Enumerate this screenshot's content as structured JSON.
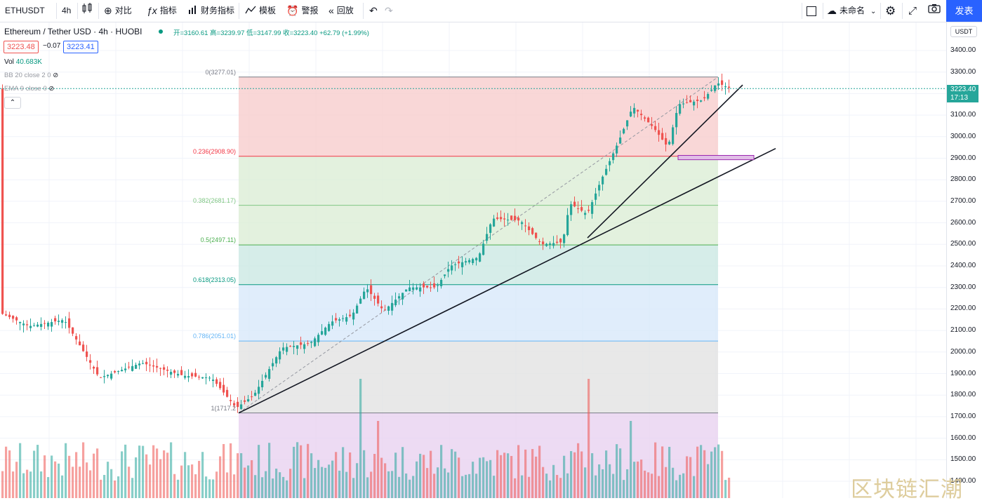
{
  "toolbar": {
    "symbol": "ETHUSDT",
    "interval": "4h",
    "compare": "对比",
    "indicators": "指标",
    "financials": "财务指标",
    "templates": "模板",
    "alert": "警报",
    "replay": "回放",
    "layout_name": "未命名",
    "publish": "发表"
  },
  "legend": {
    "title": "Ethereum / Tether USD · 4h · HUOBI",
    "ohlc": "开=3160.61 高=3239.97 低=3147.99 收=3223.40 +62.79 (+1.99%)",
    "bid": "3223.48",
    "spread": "−0.07",
    "ask": "3223.41",
    "vol_label": "Vol",
    "vol_value": "40.683K",
    "bb": "BB 20 close 2 0",
    "ema": "EMA 9 close 0"
  },
  "axis": {
    "currency": "USDT",
    "ticks": [
      "3400.00",
      "3300.00",
      "3200.00",
      "3100.00",
      "3000.00",
      "2900.00",
      "2800.00",
      "2700.00",
      "2600.00",
      "2500.00",
      "2400.00",
      "2300.00",
      "2200.00",
      "2100.00",
      "2000.00",
      "1900.00",
      "1800.00",
      "1700.00",
      "1600.00",
      "1500.00",
      "1400.00"
    ],
    "last_price": "3223.40",
    "countdown": "17:13"
  },
  "fib_levels": [
    {
      "label": "0(3277.01)",
      "color": "#787b86",
      "fill": "#f8cdcd"
    },
    {
      "label": "0.236(2908.90)",
      "color": "#f23645",
      "fill": "#dcedd6"
    },
    {
      "label": "0.382(2681.17)",
      "color": "#81c784",
      "fill": "#dcedd6"
    },
    {
      "label": "0.5(2497.11)",
      "color": "#4caf50",
      "fill": "#cce8e3"
    },
    {
      "label": "0.618(2313.05)",
      "color": "#089981",
      "fill": "#d8e9fa"
    },
    {
      "label": "0.786(2051.01)",
      "color": "#64b5f6",
      "fill": "#e2e2e2"
    },
    {
      "label": "1(1717.2",
      "color": "#787b86",
      "fill": "#e9d2f0"
    }
  ],
  "colors": {
    "up": "#26a69a",
    "down": "#ef5350",
    "accent": "#2962ff"
  },
  "watermark": "区块链汇潮"
}
